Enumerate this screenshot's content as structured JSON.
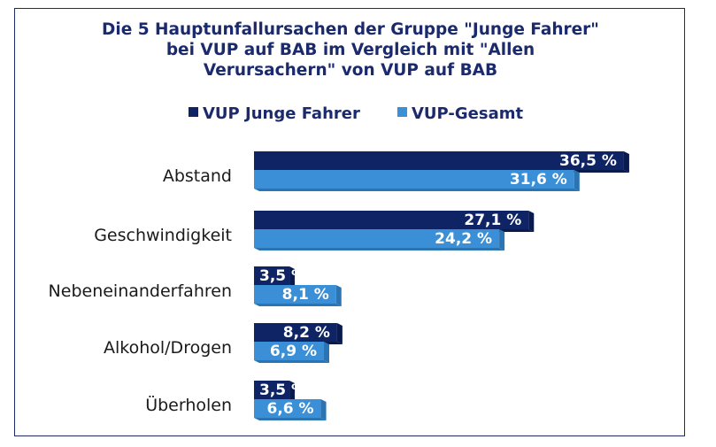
{
  "chart_data": {
    "type": "bar",
    "orientation": "horizontal",
    "title_lines": [
      "Die 5 Hauptunfallursachen der Gruppe \"Junge Fahrer\"",
      "bei VUP auf BAB  im Vergleich mit \"Allen",
      "Verursachern\" von VUP  auf BAB"
    ],
    "categories": [
      "Abstand",
      "Geschwindigkeit",
      "Nebeneinanderfahren",
      "Alkohol/Drogen",
      "Überholen"
    ],
    "series": [
      {
        "name": "VUP Junge Fahrer",
        "color": "#0f2464",
        "values": [
          36.5,
          27.1,
          3.5,
          8.2,
          3.5
        ],
        "labels": [
          "36,5 %",
          "27,1 %",
          "3,5 %",
          "8,2 %",
          "3,5 %"
        ]
      },
      {
        "name": "VUP-Gesamt",
        "color": "#3a8fd6",
        "values": [
          31.6,
          24.2,
          8.1,
          6.9,
          6.6
        ],
        "labels": [
          "31,6 %",
          "24,2 %",
          "8,1 %",
          "6,9 %",
          "6,6 %"
        ]
      }
    ],
    "legend_position": "top",
    "xlim": [
      0,
      40
    ],
    "grid": false
  }
}
